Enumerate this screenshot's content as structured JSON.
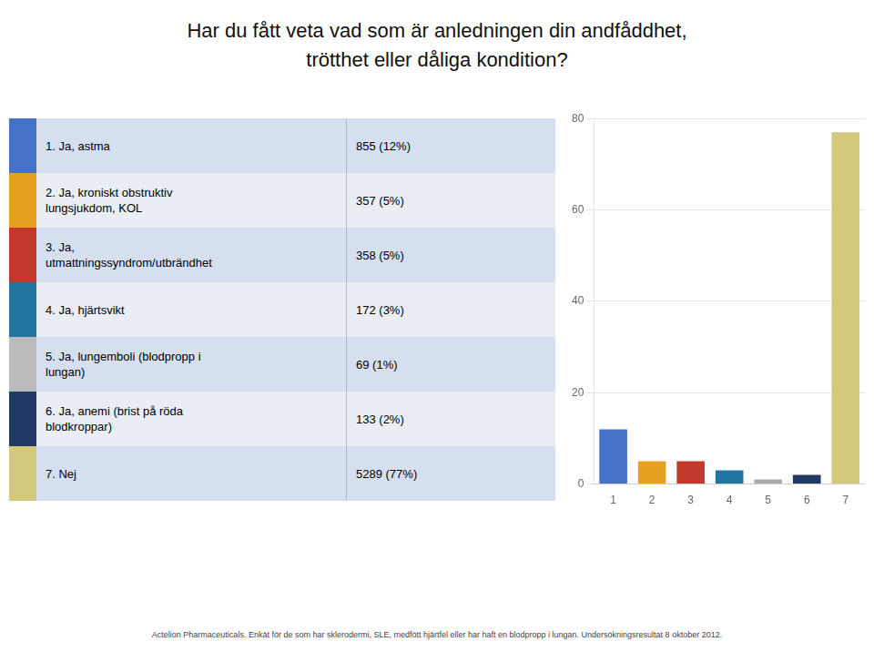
{
  "chart_data": {
    "type": "bar",
    "title": "Har du fått veta vad som är anledningen din andfåddhet,\ntrötthet eller dåliga kondition?",
    "categories": [
      "1",
      "2",
      "3",
      "4",
      "5",
      "6",
      "7"
    ],
    "values": [
      12,
      5,
      5,
      3,
      1,
      2,
      77
    ],
    "colors": [
      "#4472C4",
      "#E8A020",
      "#C0392B",
      "#2076A0",
      "#AAAAAA",
      "#1F3864",
      "#D4C87A"
    ],
    "ylim": [
      0,
      80
    ],
    "yticks": [
      0,
      20,
      40,
      60,
      80
    ],
    "grid": true,
    "annotations": [
      {
        "text": "1. Ja, astma",
        "label": "855 (12%)",
        "color": "#4472C4"
      },
      {
        "text": "2. Ja, kroniskt obstruktiv\nlungsjukdom, KOL",
        "label": "357 (5%)",
        "color": "#E8A020"
      },
      {
        "text": "3. Ja,\nutmattningssyndrom/utbrändhet",
        "label": "358 (5%)",
        "color": "#C0392B"
      },
      {
        "text": "4. Ja, hjärtsvikt",
        "label": "172 (3%)",
        "color": "#2076A0"
      },
      {
        "text": "5. Ja, lungemboli (blodpropp i\nlungan)",
        "label": "69 (1%)",
        "color": "#BBBBBB"
      },
      {
        "text": "6. Ja, anemi (brist på röda\nblodkroppar)",
        "label": "133 (2%)",
        "color": "#1F3864"
      },
      {
        "text": "7. Nej",
        "label": "5289 (77%)",
        "color": "#D4C87A"
      },
      {
        "text": "Actelion Pharmaceuticals.  Enkät för de som har sklerodermi, SLE, medfött hjärtfel eller har haft en blodpropp i lungan.  Undersökningsresultat 8 oktober 2012."
      }
    ]
  }
}
